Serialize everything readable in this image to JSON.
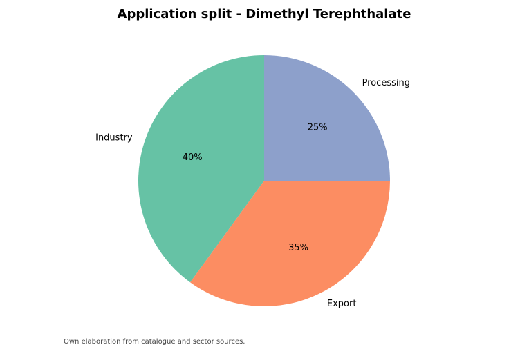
{
  "chart_data": {
    "type": "pie",
    "title": "Application split - Dimethyl Terephthalate",
    "categories": [
      "Industry",
      "Export",
      "Processing"
    ],
    "values": [
      40,
      35,
      25
    ],
    "value_labels": [
      "40%",
      "35%",
      "25%"
    ],
    "colors": [
      "#66c2a5",
      "#fc8d62",
      "#8da0cb"
    ],
    "note": "Own elaboration from catalogue and sector sources."
  }
}
